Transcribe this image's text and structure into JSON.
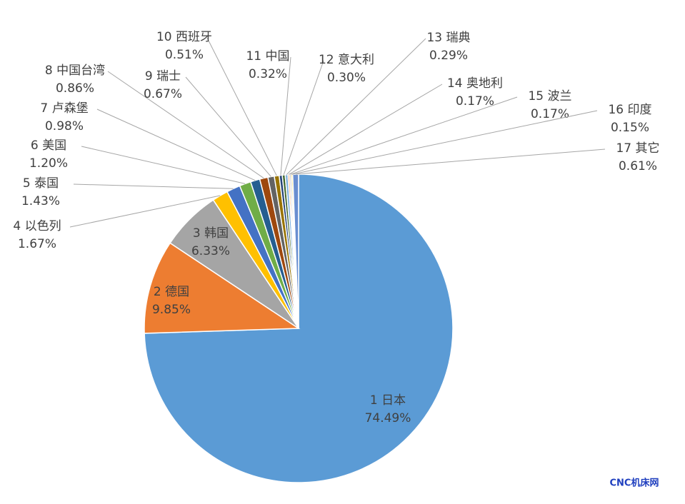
{
  "chart_data": {
    "type": "pie",
    "categories": [
      "1 日本",
      "2 德国",
      "3 韩国",
      "4 以色列",
      "5 泰国",
      "6 美国",
      "7 卢森堡",
      "8 中国台湾",
      "9 瑞士",
      "10 西班牙",
      "11 中国",
      "12 意大利",
      "13 瑞典",
      "14 奥地利",
      "15 波兰",
      "16 印度",
      "17 其它"
    ],
    "values": [
      74.49,
      9.85,
      6.33,
      1.67,
      1.43,
      1.2,
      0.98,
      0.86,
      0.67,
      0.51,
      0.32,
      0.3,
      0.29,
      0.17,
      0.17,
      0.15,
      0.61
    ],
    "value_labels": [
      "74.49%",
      "9.85%",
      "6.33%",
      "1.67%",
      "1.43%",
      "1.20%",
      "0.98%",
      "0.86%",
      "0.67%",
      "0.51%",
      "0.32%",
      "0.30%",
      "0.29%",
      "0.17%",
      "0.17%",
      "0.15%",
      "0.61%"
    ],
    "colors": [
      "#5b9bd5",
      "#ed7d31",
      "#a5a5a5",
      "#ffc000",
      "#4472c4",
      "#70ad47",
      "#255e91",
      "#9e480e",
      "#636363",
      "#997300",
      "#264478",
      "#43682b",
      "#7cafdd",
      "#f1975a",
      "#b7b7b7",
      "#ffcd33",
      "#698ed0"
    ],
    "watermark": "CNC机床网"
  }
}
